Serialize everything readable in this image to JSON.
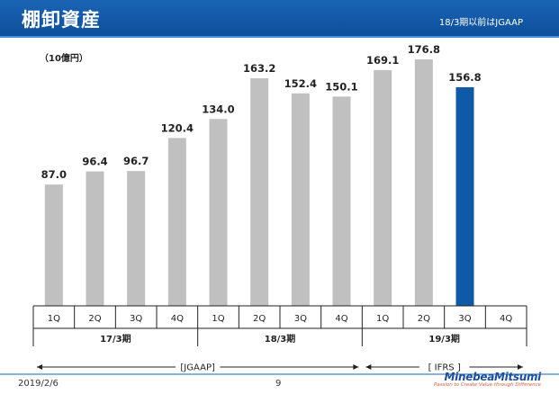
{
  "header": {
    "title": "棚卸資産",
    "note": "18/3期以前はJGAAP"
  },
  "unit": "（10億円）",
  "footer": {
    "date": "2019/2/6",
    "page": "9",
    "logo": "MinebeaMitsumi",
    "tagline": "Passion to Create Value through Difference"
  },
  "colors": {
    "bar": "#c0c0c0",
    "highlight": "#0e5aa7",
    "header": "#1a64b4"
  },
  "chart_data": {
    "type": "bar",
    "categories": [
      "1Q",
      "2Q",
      "3Q",
      "4Q",
      "1Q",
      "2Q",
      "3Q",
      "4Q",
      "1Q",
      "2Q",
      "3Q",
      "4Q"
    ],
    "values": [
      87.0,
      96.4,
      96.7,
      120.4,
      134.0,
      163.2,
      152.4,
      150.1,
      169.1,
      176.8,
      156.8,
      null
    ],
    "labels": [
      "87.0",
      "96.4",
      "96.7",
      "120.4",
      "134.0",
      "163.2",
      "152.4",
      "150.1",
      "169.1",
      "176.8",
      "156.8",
      ""
    ],
    "highlight_index": 10,
    "groups": [
      {
        "label": "17/3期",
        "count": 4
      },
      {
        "label": "18/3期",
        "count": 4
      },
      {
        "label": "19/3期",
        "count": 4
      }
    ],
    "standards": [
      {
        "label": "[JGAAP]",
        "count": 8
      },
      {
        "label": "[ IFRS ]",
        "count": 4
      }
    ],
    "ylim": [
      0,
      200
    ],
    "grid": false,
    "legend": "none"
  }
}
